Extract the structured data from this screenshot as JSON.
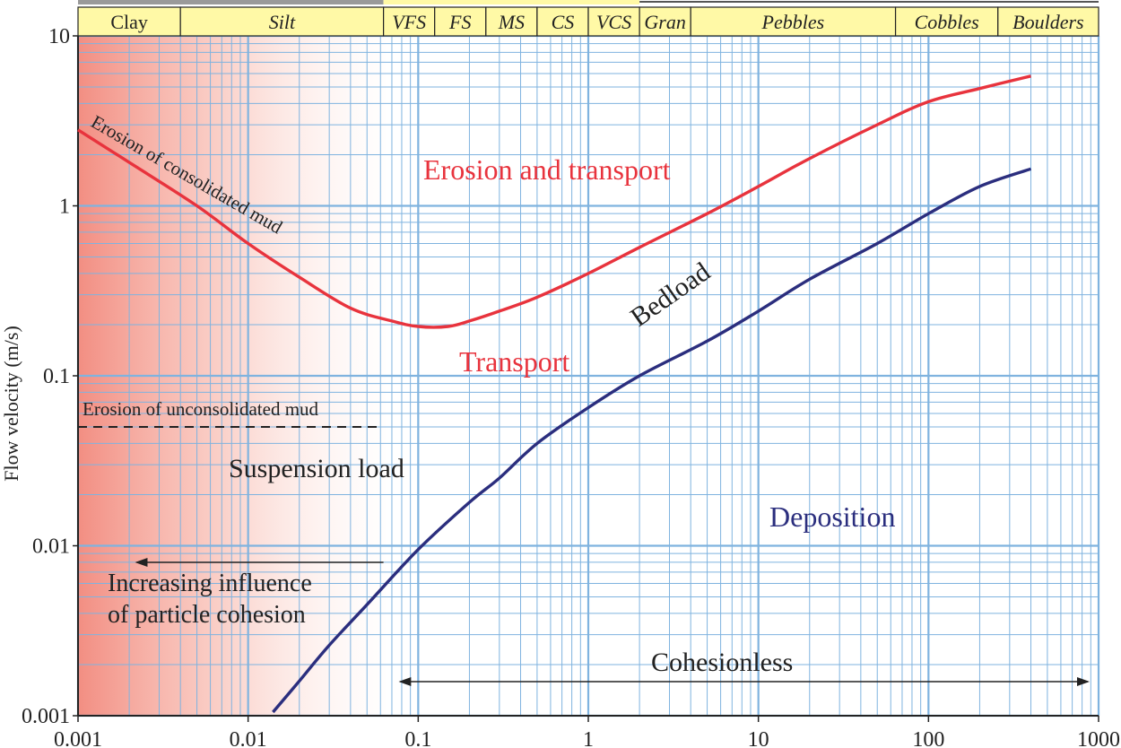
{
  "chart_data": {
    "type": "line",
    "title": "",
    "xlabel": "",
    "ylabel": "Flow velocity (m/s)",
    "x_scale": "log",
    "y_scale": "log",
    "xlim": [
      0.001,
      1000
    ],
    "ylim": [
      0.001,
      10
    ],
    "x_ticks": [
      0.001,
      0.01,
      0.1,
      1,
      10,
      100,
      1000
    ],
    "x_tick_labels": [
      "0.001",
      "0.01",
      "0.1",
      "1",
      "10",
      "100",
      "1000"
    ],
    "y_ticks": [
      0.001,
      0.01,
      0.1,
      1,
      10
    ],
    "y_tick_labels": [
      "0.001",
      "0.01",
      "0.1",
      "1",
      "10"
    ],
    "grid": true,
    "size_classes": [
      {
        "label": "Clay",
        "from": 0.001,
        "to": 0.004,
        "italic": false
      },
      {
        "label": "Silt",
        "from": 0.004,
        "to": 0.0625,
        "italic": true
      },
      {
        "label": "VFS",
        "from": 0.0625,
        "to": 0.125,
        "italic": true
      },
      {
        "label": "FS",
        "from": 0.125,
        "to": 0.25,
        "italic": true
      },
      {
        "label": "MS",
        "from": 0.25,
        "to": 0.5,
        "italic": true
      },
      {
        "label": "CS",
        "from": 0.5,
        "to": 1,
        "italic": true
      },
      {
        "label": "VCS",
        "from": 1,
        "to": 2,
        "italic": true
      },
      {
        "label": "Gran",
        "from": 2,
        "to": 4,
        "italic": true
      },
      {
        "label": "Pebbles",
        "from": 4,
        "to": 64,
        "italic": true
      },
      {
        "label": "Cobbles",
        "from": 64,
        "to": 256,
        "italic": true
      },
      {
        "label": "Boulders",
        "from": 256,
        "to": 1000,
        "italic": true
      }
    ],
    "series": [
      {
        "color": "#e8333d",
        "x": [
          0.001,
          0.002,
          0.005,
          0.01,
          0.02,
          0.04,
          0.07,
          0.1,
          0.15,
          0.2,
          0.3,
          0.5,
          1,
          2,
          5,
          10,
          20,
          50,
          100,
          200,
          400
        ],
        "y": [
          2.8,
          1.8,
          1.0,
          0.6,
          0.38,
          0.25,
          0.21,
          0.195,
          0.195,
          0.21,
          0.24,
          0.29,
          0.4,
          0.57,
          0.9,
          1.3,
          1.9,
          3.0,
          4.1,
          4.9,
          5.8
        ]
      },
      {
        "color": "#2b2e7e",
        "x": [
          0.014,
          0.02,
          0.03,
          0.05,
          0.1,
          0.2,
          0.3,
          0.5,
          1,
          2,
          5,
          10,
          20,
          50,
          100,
          200,
          400
        ],
        "y": [
          0.00105,
          0.0016,
          0.0026,
          0.0045,
          0.0095,
          0.018,
          0.025,
          0.04,
          0.065,
          0.1,
          0.16,
          0.24,
          0.37,
          0.6,
          0.9,
          1.3,
          1.65
        ]
      },
      {
        "color": "#222222",
        "dashed": true,
        "x": [
          0.001,
          0.06
        ],
        "y": [
          0.05,
          0.05
        ]
      }
    ],
    "annotations": [
      {
        "text": "Erosion of consolidated mud",
        "color": "#222222"
      },
      {
        "text": "Erosion and transport",
        "color": "#e8333d"
      },
      {
        "text": "Transport",
        "color": "#e8333d"
      },
      {
        "text": "Bedload",
        "color": "#222222"
      },
      {
        "text": "Erosion of unconsolidated mud",
        "color": "#222222"
      },
      {
        "text": "Suspension load",
        "color": "#222222"
      },
      {
        "text": "Deposition",
        "color": "#2b2e7e"
      },
      {
        "text": "Increasing influence",
        "color": "#222222"
      },
      {
        "text": "of particle cohesion",
        "color": "#222222"
      },
      {
        "text": "Cohesionless",
        "color": "#222222"
      }
    ],
    "cohesion_range": {
      "from": 0.1,
      "to": 1000
    },
    "cohesion_arrow": {
      "from": 0.0625,
      "to": 0.0025
    },
    "colors": {
      "grid": "#7fb3df",
      "header_fill": "#fff9a6",
      "axis": "#222222",
      "cohesive_shade": "#f07a6c"
    }
  }
}
